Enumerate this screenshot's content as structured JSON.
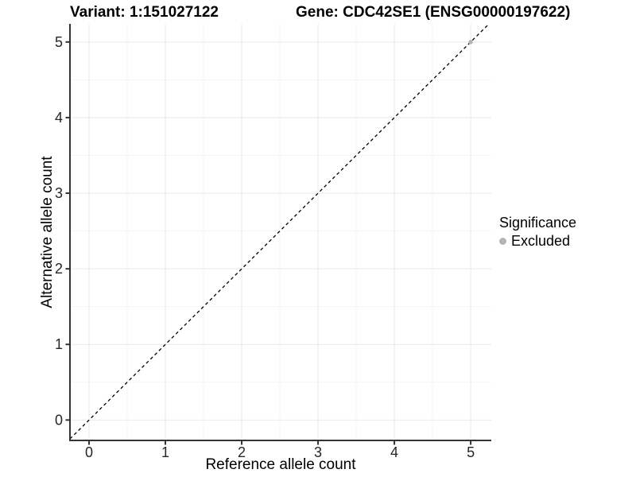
{
  "chart_data": {
    "type": "scatter",
    "title_left": "Variant: 1:151027122",
    "title_right": "Gene: CDC42SE1 (ENSG00000197622)",
    "xlabel": "Reference allele count",
    "ylabel": "Alternative allele count",
    "xlim": [
      -0.25,
      5.27
    ],
    "ylim": [
      -0.27,
      5.24
    ],
    "x_ticks": [
      0,
      1,
      2,
      3,
      4,
      5
    ],
    "y_ticks": [
      0,
      1,
      2,
      3,
      4,
      5
    ],
    "grid": {
      "major": true,
      "minor": true
    },
    "identity_line": {
      "slope": 1,
      "intercept": 0,
      "style": "dashed",
      "color": "#000000"
    },
    "series": [
      {
        "name": "Excluded",
        "color": "#b3b3b3",
        "points": [
          {
            "x": 5,
            "y": 5
          }
        ]
      }
    ],
    "legend": {
      "title": "Significance",
      "position": "right",
      "items": [
        {
          "label": "Excluded",
          "color": "#b3b3b3"
        }
      ]
    }
  },
  "colors": {
    "background": "#ffffff",
    "axis_line": "#333333",
    "grid_major": "#e9e9e9",
    "grid_minor": "#f5f5f5",
    "tick_text": "#262626",
    "title_text": "#000000"
  }
}
